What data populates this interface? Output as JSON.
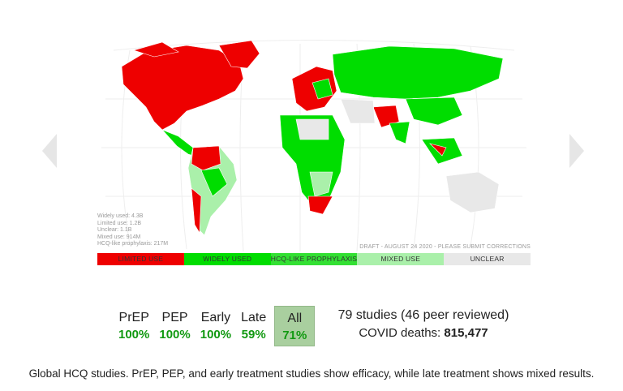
{
  "map_stats": {
    "widely_used": "Widely used: 4.3B",
    "limited_use": "Limited use: 1.2B",
    "unclear": "Unclear: 1.1B",
    "mixed_use": "Mixed use: 914M",
    "prophylaxis": "HCQ-like prophylaxis: 217M"
  },
  "draft_note": "DRAFT - AUGUST 24 2020 - PLEASE SUBMIT CORRECTIONS",
  "legend": [
    {
      "label": "LIMITED USE",
      "color": "#ee0000"
    },
    {
      "label": "WIDELY USED",
      "color": "#00dd00"
    },
    {
      "label": "HCQ-LIKE PROPHYLAXIS",
      "color": "#33e033"
    },
    {
      "label": "MIXED USE",
      "color": "#aaf0aa"
    },
    {
      "label": "UNCLEAR",
      "color": "#e8e8e8"
    }
  ],
  "efficacy": {
    "prep": {
      "label": "PrEP",
      "value": "100%"
    },
    "pep": {
      "label": "PEP",
      "value": "100%"
    },
    "early": {
      "label": "Early",
      "value": "100%"
    },
    "late": {
      "label": "Late",
      "value": "59%"
    },
    "all": {
      "label": "All",
      "value": "71%"
    }
  },
  "summary": {
    "studies": "79 studies (46 peer reviewed)",
    "deaths_label": "COVID deaths:",
    "deaths_value": "815,477"
  },
  "caption": "Global HCQ studies. PrEP, PEP, and early treatment studies show efficacy, while late treatment shows mixed results.",
  "colors": {
    "green_text": "#119911",
    "red": "#ee0000",
    "green": "#00dd00",
    "light_green": "#aaf0aa",
    "gray": "#e8e8e8"
  }
}
